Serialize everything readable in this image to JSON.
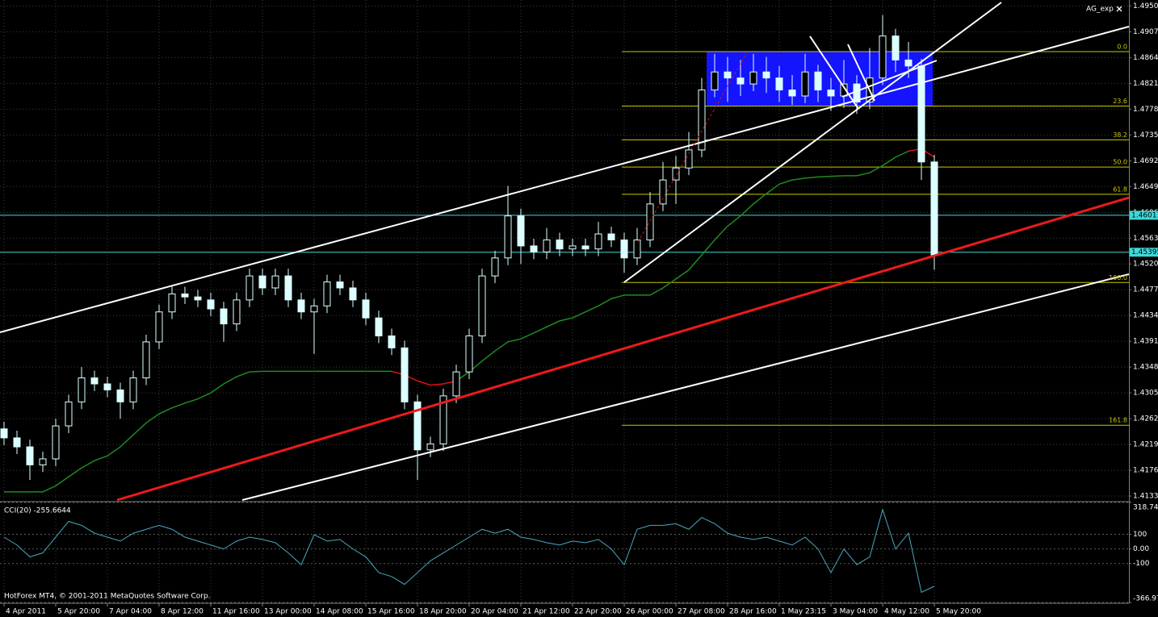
{
  "window": {
    "indicator": "AG_exp",
    "copyright": "HotForex MT4, © 2001-2011 MetaQuotes Software Corp."
  },
  "chart_data": [
    {
      "type": "candlestick",
      "categories": [
        "4 Apr 2011",
        null,
        null,
        null,
        "5 Apr 20:00",
        null,
        null,
        null,
        "7 Apr 04:00",
        null,
        null,
        null,
        "8 Apr 12:00",
        null,
        null,
        null,
        "11 Apr 16:00",
        null,
        null,
        null,
        "13 Apr 00:00",
        null,
        null,
        null,
        "14 Apr 08:00",
        null,
        null,
        null,
        "15 Apr 16:00",
        null,
        null,
        null,
        "18 Apr 20:00",
        null,
        null,
        null,
        "20 Apr 04:00",
        null,
        null,
        null,
        "21 Apr 12:00",
        null,
        null,
        null,
        "22 Apr 20:00",
        null,
        null,
        null,
        "26 Apr 00:00",
        null,
        null,
        null,
        "27 Apr 08:00",
        null,
        null,
        null,
        "28 Apr 16:00",
        null,
        null,
        null,
        "1 May 23:15",
        null,
        null,
        null,
        "3 May 04:00",
        null,
        null,
        null,
        "4 May 12:00",
        null,
        null,
        null,
        "5 May 20:00"
      ],
      "open": [
        1.4245,
        1.423,
        1.4215,
        1.4185,
        1.4195,
        1.425,
        1.429,
        1.433,
        1.432,
        1.431,
        1.429,
        1.433,
        1.439,
        1.444,
        1.447,
        1.4465,
        1.446,
        1.4445,
        1.442,
        1.446,
        1.45,
        1.448,
        1.45,
        1.446,
        1.444,
        1.445,
        1.449,
        1.448,
        1.446,
        1.443,
        1.44,
        1.438,
        1.429,
        1.421,
        1.422,
        1.43,
        1.434,
        1.44,
        1.45,
        1.453,
        1.46,
        1.455,
        1.454,
        1.456,
        1.4545,
        1.455,
        1.4545,
        1.457,
        1.456,
        1.453,
        1.456,
        1.462,
        1.466,
        1.468,
        1.471,
        1.481,
        1.484,
        1.483,
        1.482,
        1.484,
        1.483,
        1.481,
        1.48,
        1.484,
        1.481,
        1.48,
        1.482,
        1.479,
        1.483,
        1.49,
        1.486,
        1.485,
        1.469
      ],
      "high": [
        1.4257,
        1.4242,
        1.4227,
        1.4207,
        1.4262,
        1.4302,
        1.4348,
        1.4342,
        1.4332,
        1.4322,
        1.4342,
        1.4402,
        1.4452,
        1.4482,
        1.4482,
        1.4477,
        1.4472,
        1.4457,
        1.4472,
        1.4512,
        1.4512,
        1.4512,
        1.4512,
        1.4472,
        1.4462,
        1.4502,
        1.4502,
        1.4492,
        1.4472,
        1.4442,
        1.4412,
        1.4392,
        1.4302,
        1.4232,
        1.4312,
        1.4352,
        1.4412,
        1.4512,
        1.4542,
        1.465,
        1.4612,
        1.4562,
        1.458,
        1.4572,
        1.4562,
        1.4562,
        1.459,
        1.4582,
        1.4572,
        1.458,
        1.464,
        1.469,
        1.47,
        1.474,
        1.483,
        1.487,
        1.4865,
        1.486,
        1.487,
        1.4865,
        1.485,
        1.4835,
        1.487,
        1.4852,
        1.483,
        1.486,
        1.4835,
        1.488,
        1.4935,
        1.4912,
        1.489,
        1.4862,
        1.4702
      ],
      "low": [
        1.4218,
        1.4203,
        1.416,
        1.4173,
        1.4183,
        1.4238,
        1.4278,
        1.4308,
        1.4298,
        1.4262,
        1.4278,
        1.4318,
        1.4378,
        1.4428,
        1.4453,
        1.4448,
        1.4433,
        1.439,
        1.4408,
        1.4448,
        1.4468,
        1.4468,
        1.4448,
        1.4428,
        1.437,
        1.4438,
        1.4468,
        1.4448,
        1.4418,
        1.4388,
        1.4368,
        1.4278,
        1.416,
        1.4198,
        1.4208,
        1.4288,
        1.4328,
        1.4388,
        1.4488,
        1.4518,
        1.452,
        1.4528,
        1.4528,
        1.4533,
        1.4533,
        1.4533,
        1.4533,
        1.4548,
        1.4505,
        1.4518,
        1.4548,
        1.4608,
        1.462,
        1.4668,
        1.4698,
        1.4798,
        1.479,
        1.48,
        1.4808,
        1.4805,
        1.479,
        1.4785,
        1.4788,
        1.479,
        1.4775,
        1.478,
        1.477,
        1.4778,
        1.4818,
        1.484,
        1.483,
        1.466,
        1.451
      ],
      "close": [
        1.423,
        1.4215,
        1.4185,
        1.4195,
        1.425,
        1.429,
        1.433,
        1.432,
        1.431,
        1.429,
        1.433,
        1.439,
        1.444,
        1.447,
        1.4465,
        1.446,
        1.4445,
        1.442,
        1.446,
        1.45,
        1.448,
        1.45,
        1.446,
        1.444,
        1.445,
        1.449,
        1.448,
        1.446,
        1.443,
        1.44,
        1.438,
        1.429,
        1.421,
        1.422,
        1.43,
        1.434,
        1.44,
        1.45,
        1.453,
        1.46,
        1.455,
        1.454,
        1.456,
        1.4545,
        1.455,
        1.4545,
        1.457,
        1.456,
        1.453,
        1.456,
        1.462,
        1.466,
        1.468,
        1.471,
        1.481,
        1.484,
        1.483,
        1.482,
        1.484,
        1.483,
        1.481,
        1.48,
        1.484,
        1.481,
        1.48,
        1.482,
        1.479,
        1.483,
        1.49,
        1.486,
        1.485,
        1.469,
        1.4535
      ],
      "candle_color": "#dcffff",
      "bull_fill": "#000000",
      "series": [
        {
          "color": "#1e8c1e",
          "values": [
            1.414,
            1.414,
            1.414,
            1.414,
            1.415,
            1.4165,
            1.418,
            1.4192,
            1.42,
            1.4215,
            1.4235,
            1.4255,
            1.427,
            1.428,
            1.4288,
            1.4295,
            1.4305,
            1.432,
            1.4332,
            1.434,
            1.4341,
            1.4341,
            1.4341,
            1.4341,
            1.4341,
            1.4341,
            1.4341,
            1.4341,
            1.4341,
            1.4341,
            1.4341,
            null,
            null,
            null,
            null,
            1.4325,
            1.434,
            1.4358,
            1.4375,
            1.439,
            1.4395,
            1.4405,
            1.4415,
            1.4425,
            1.443,
            1.444,
            1.445,
            1.4462,
            1.4468,
            1.4468,
            1.4468,
            1.448,
            1.4495,
            1.451,
            1.4535,
            1.456,
            1.4583,
            1.46,
            1.462,
            1.4637,
            1.4653,
            1.466,
            1.4663,
            1.4665,
            1.4666,
            1.4667,
            1.4667,
            1.4672,
            1.4684,
            1.4698,
            1.4708,
            null,
            null
          ]
        },
        {
          "color": "#e01010",
          "values": [
            null,
            null,
            null,
            null,
            null,
            null,
            null,
            null,
            null,
            null,
            null,
            null,
            null,
            null,
            null,
            null,
            null,
            null,
            null,
            null,
            null,
            null,
            null,
            null,
            null,
            null,
            null,
            null,
            null,
            null,
            1.4341,
            1.4335,
            1.4325,
            1.4318,
            1.432,
            1.4325,
            null,
            null,
            null,
            null,
            null,
            null,
            null,
            null,
            null,
            null,
            null,
            null,
            null,
            null,
            null,
            null,
            null,
            null,
            null,
            null,
            null,
            null,
            null,
            null,
            null,
            null,
            null,
            null,
            null,
            null,
            null,
            null,
            null,
            null,
            1.4708,
            1.4712,
            1.4698
          ]
        }
      ],
      "ylim": [
        1.4125,
        1.496
      ],
      "yticks": [
        {
          "value": 1.495,
          "label": "1.49500"
        },
        {
          "value": 1.4907,
          "label": "1.49070"
        },
        {
          "value": 1.4864,
          "label": "1.48640"
        },
        {
          "value": 1.4821,
          "label": "1.48210"
        },
        {
          "value": 1.4778,
          "label": "1.47780"
        },
        {
          "value": 1.4735,
          "label": "1.47350"
        },
        {
          "value": 1.4692,
          "label": "1.46920"
        },
        {
          "value": 1.4649,
          "label": "1.46490"
        },
        {
          "value": 1.4606,
          "label": "1.46060"
        },
        {
          "value": 1.4563,
          "label": "1.45630"
        },
        {
          "value": 1.452,
          "label": "1.45200"
        },
        {
          "value": 1.4477,
          "label": "1.44770"
        },
        {
          "value": 1.4434,
          "label": "1.44340"
        },
        {
          "value": 1.4391,
          "label": "1.43910"
        },
        {
          "value": 1.4348,
          "label": "1.43480"
        },
        {
          "value": 1.4305,
          "label": "1.43050"
        },
        {
          "value": 1.4262,
          "label": "1.42620"
        },
        {
          "value": 1.4219,
          "label": "1.42190"
        },
        {
          "value": 1.4176,
          "label": "1.41760"
        },
        {
          "value": 1.4133,
          "label": "1.41330"
        }
      ],
      "grid": true,
      "price_lines": [
        1.46011,
        1.45395
      ],
      "price_line_color": "#40d8d8",
      "fibo": {
        "high": 1.4874,
        "low": 1.4489,
        "color": "#c8c800",
        "levels": [
          {
            "value": 0,
            "label": "0.0"
          },
          23.6,
          38.2,
          {
            "value": 50,
            "label": "50.0"
          },
          61.8,
          {
            "value": 100,
            "label": "100.0"
          },
          161.8
        ]
      }
    },
    {
      "type": "line",
      "title": "CCI(20) -255.6644",
      "color": "#4aa8c0",
      "values": [
        81,
        27,
        -54,
        -27,
        81,
        189,
        162,
        108,
        81,
        54,
        108,
        135,
        162,
        135,
        81,
        54,
        27,
        0,
        54,
        81,
        65,
        43,
        -27,
        -108,
        97,
        54,
        65,
        0,
        -54,
        -162,
        -189,
        -243,
        -162,
        -81,
        -27,
        27,
        81,
        135,
        108,
        135,
        81,
        65,
        43,
        27,
        54,
        43,
        65,
        0,
        -108,
        135,
        162,
        162,
        173,
        135,
        216,
        173,
        108,
        81,
        65,
        81,
        54,
        27,
        81,
        0,
        -162,
        0,
        -108,
        -54,
        270,
        0,
        108,
        -297,
        -255.6644
      ],
      "ylim": [
        -366.971,
        318.745
      ],
      "yticks": [
        318.745,
        100,
        {
          "value": 0,
          "label": "0.00"
        },
        -100,
        -366.971
      ]
    }
  ]
}
